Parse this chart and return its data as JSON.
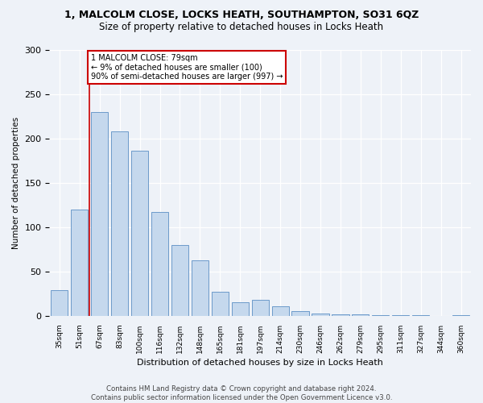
{
  "title1": "1, MALCOLM CLOSE, LOCKS HEATH, SOUTHAMPTON, SO31 6QZ",
  "title2": "Size of property relative to detached houses in Locks Heath",
  "xlabel": "Distribution of detached houses by size in Locks Heath",
  "ylabel": "Number of detached properties",
  "bar_labels": [
    "35sqm",
    "51sqm",
    "67sqm",
    "83sqm",
    "100sqm",
    "116sqm",
    "132sqm",
    "148sqm",
    "165sqm",
    "181sqm",
    "197sqm",
    "214sqm",
    "230sqm",
    "246sqm",
    "262sqm",
    "279sqm",
    "295sqm",
    "311sqm",
    "327sqm",
    "344sqm",
    "360sqm"
  ],
  "bar_values": [
    29,
    120,
    230,
    208,
    186,
    117,
    80,
    63,
    27,
    15,
    18,
    11,
    5,
    3,
    2,
    2,
    1,
    1,
    1,
    0,
    1
  ],
  "bar_color": "#c5d8ed",
  "bar_edge_color": "#5b8ec4",
  "vline_x": 1.5,
  "vline_color": "#cc0000",
  "annotation_text": "1 MALCOLM CLOSE: 79sqm\n← 9% of detached houses are smaller (100)\n90% of semi-detached houses are larger (997) →",
  "annotation_box_color": "#ffffff",
  "annotation_box_edge": "#cc0000",
  "ylim": [
    0,
    300
  ],
  "yticks": [
    0,
    50,
    100,
    150,
    200,
    250,
    300
  ],
  "footer": "Contains HM Land Registry data © Crown copyright and database right 2024.\nContains public sector information licensed under the Open Government Licence v3.0.",
  "bg_color": "#eef2f8"
}
